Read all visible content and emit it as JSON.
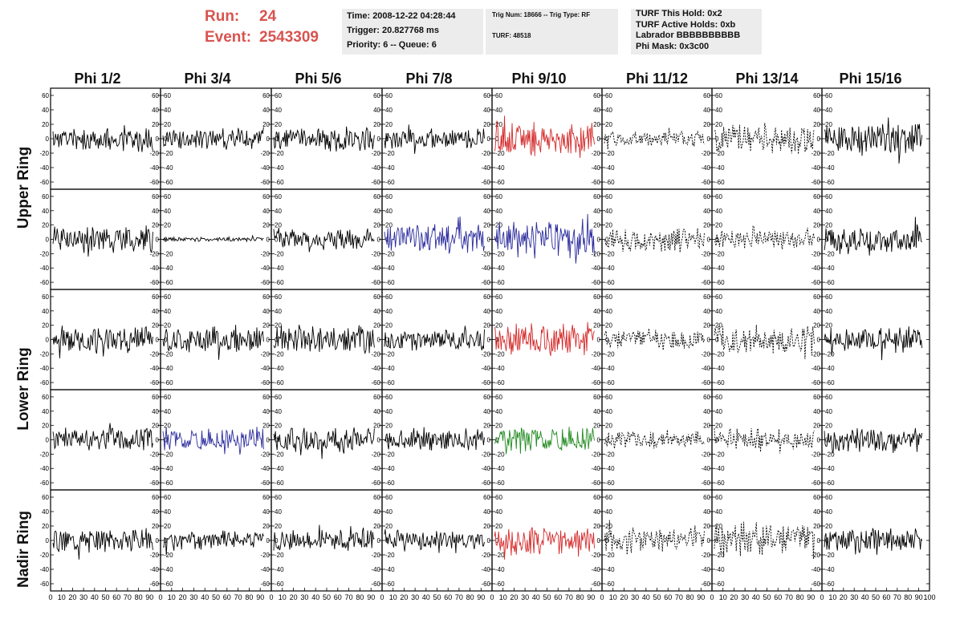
{
  "header": {
    "run_label": "Run:",
    "run_value": "24",
    "event_label": "Event:",
    "event_value": "2543309"
  },
  "info_panel_1": {
    "time": "Time: 2008-12-22 04:28:44",
    "trigger": "Trigger: 20.827768 ms",
    "priority": "Priority: 6 -- Queue: 6"
  },
  "info_panel_2": {
    "trig": "Trig Num: 18666 -- Trig Type: RF",
    "turf": "TURF: 48518"
  },
  "info_panel_3": {
    "hold": "TURF This Hold: 0x2",
    "active": "TURF Active Holds: 0xb",
    "labrador": "Labrador BBBBBBBBBB",
    "mask": "Phi Mask: 0x3c00"
  },
  "phi_headers": [
    "Phi 1/2",
    "Phi 3/4",
    "Phi 5/6",
    "Phi 7/8",
    "Phi 9/10",
    "Phi 11/12",
    "Phi 13/14",
    "Phi 15/16"
  ],
  "ring_labels": {
    "upper": "Upper Ring",
    "lower": "Lower Ring",
    "nadir": "Nadir Ring"
  },
  "chart_data": {
    "type": "line",
    "y_ticks": [
      60,
      40,
      20,
      0,
      -20,
      -40,
      -60
    ],
    "x_ticks": [
      0,
      10,
      20,
      30,
      40,
      50,
      60,
      70,
      80,
      90,
      100
    ],
    "ylim": [
      -70,
      70
    ],
    "xlim": [
      0,
      100
    ],
    "grid": false,
    "colors": {
      "black": "#000000",
      "red": "#d42a2a",
      "blue": "#2b2b9e",
      "green": "#1f8a1f"
    },
    "rows": 5,
    "cols": 8,
    "panels": [
      [
        {
          "color": "black",
          "style": "solid",
          "amp": 16,
          "seed": 11
        },
        {
          "color": "black",
          "style": "solid",
          "amp": 14,
          "seed": 12
        },
        {
          "color": "black",
          "style": "solid",
          "amp": 15,
          "seed": 13
        },
        {
          "color": "black",
          "style": "solid",
          "amp": 13,
          "seed": 14
        },
        {
          "color": "red",
          "style": "solid",
          "amp": 24,
          "seed": 15
        },
        {
          "color": "black",
          "style": "dashed",
          "amp": 10,
          "seed": 16
        },
        {
          "color": "black",
          "style": "dashed",
          "amp": 20,
          "seed": 17
        },
        {
          "color": "black",
          "style": "solid",
          "amp": 22,
          "seed": 18
        }
      ],
      [
        {
          "color": "black",
          "style": "solid",
          "amp": 18,
          "seed": 21
        },
        {
          "color": "black",
          "style": "solid",
          "amp": 3,
          "seed": 22
        },
        {
          "color": "black",
          "style": "solid",
          "amp": 15,
          "seed": 23
        },
        {
          "color": "blue",
          "style": "solid",
          "amp": 20,
          "seed": 24
        },
        {
          "color": "blue",
          "style": "solid",
          "amp": 24,
          "seed": 25
        },
        {
          "color": "black",
          "style": "dashed",
          "amp": 16,
          "seed": 26
        },
        {
          "color": "black",
          "style": "dashed",
          "amp": 12,
          "seed": 27
        },
        {
          "color": "black",
          "style": "solid",
          "amp": 18,
          "seed": 28
        }
      ],
      [
        {
          "color": "black",
          "style": "solid",
          "amp": 16,
          "seed": 31
        },
        {
          "color": "black",
          "style": "solid",
          "amp": 18,
          "seed": 32
        },
        {
          "color": "black",
          "style": "solid",
          "amp": 18,
          "seed": 33
        },
        {
          "color": "black",
          "style": "solid",
          "amp": 14,
          "seed": 34
        },
        {
          "color": "red",
          "style": "solid",
          "amp": 22,
          "seed": 35
        },
        {
          "color": "black",
          "style": "dashed",
          "amp": 14,
          "seed": 36
        },
        {
          "color": "black",
          "style": "dashed",
          "amp": 18,
          "seed": 37
        },
        {
          "color": "black",
          "style": "solid",
          "amp": 16,
          "seed": 38
        }
      ],
      [
        {
          "color": "black",
          "style": "solid",
          "amp": 17,
          "seed": 41
        },
        {
          "color": "blue",
          "style": "solid",
          "amp": 16,
          "seed": 42
        },
        {
          "color": "black",
          "style": "solid",
          "amp": 16,
          "seed": 43
        },
        {
          "color": "black",
          "style": "solid",
          "amp": 14,
          "seed": 44
        },
        {
          "color": "green",
          "style": "solid",
          "amp": 18,
          "seed": 45
        },
        {
          "color": "black",
          "style": "dashed",
          "amp": 12,
          "seed": 46
        },
        {
          "color": "black",
          "style": "dashed",
          "amp": 14,
          "seed": 47
        },
        {
          "color": "black",
          "style": "solid",
          "amp": 18,
          "seed": 48
        }
      ],
      [
        {
          "color": "black",
          "style": "solid",
          "amp": 16,
          "seed": 51
        },
        {
          "color": "black",
          "style": "solid",
          "amp": 12,
          "seed": 52
        },
        {
          "color": "black",
          "style": "solid",
          "amp": 14,
          "seed": 53
        },
        {
          "color": "black",
          "style": "solid",
          "amp": 13,
          "seed": 54
        },
        {
          "color": "red",
          "style": "solid",
          "amp": 18,
          "seed": 55
        },
        {
          "color": "black",
          "style": "dashed",
          "amp": 16,
          "seed": 56
        },
        {
          "color": "black",
          "style": "dashed",
          "amp": 22,
          "seed": 57
        },
        {
          "color": "black",
          "style": "solid",
          "amp": 15,
          "seed": 58
        }
      ]
    ]
  }
}
